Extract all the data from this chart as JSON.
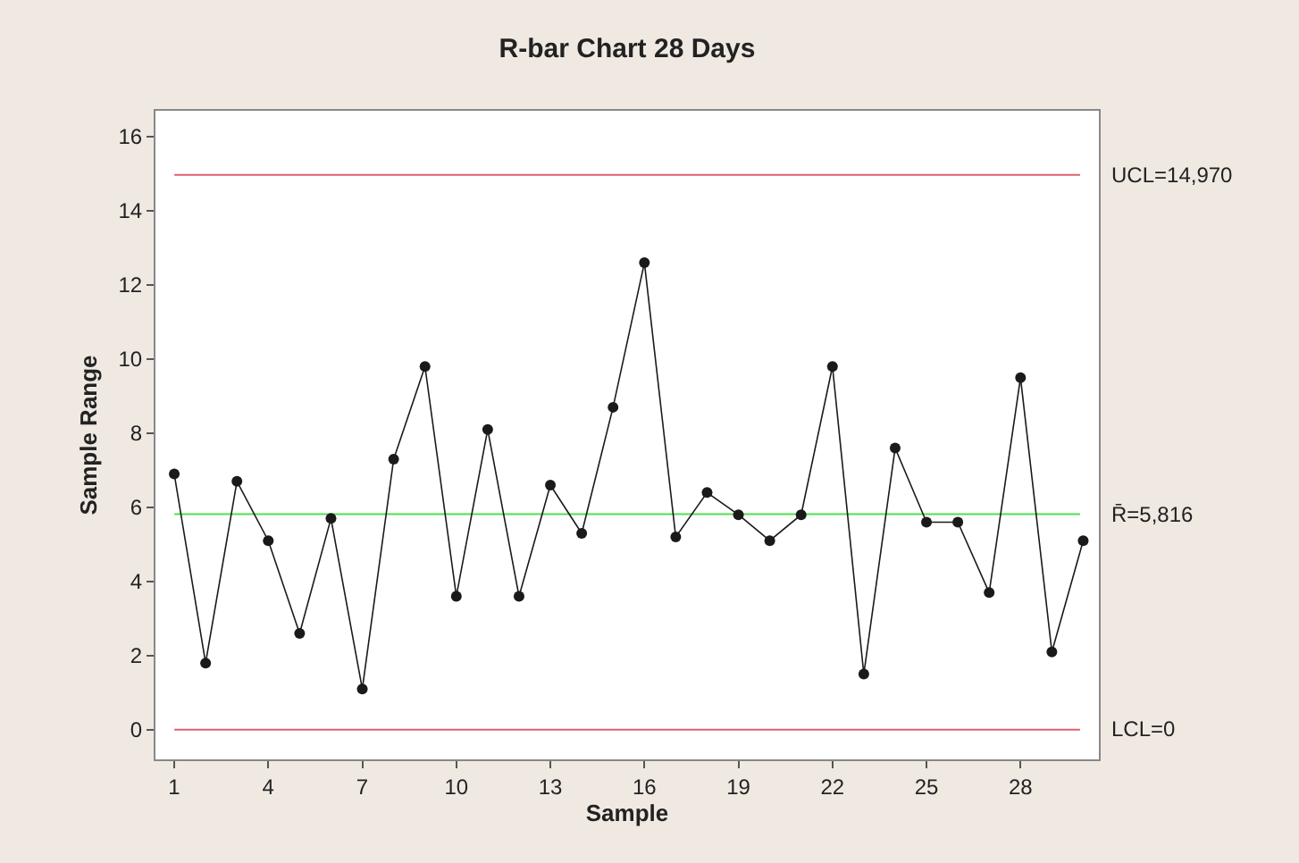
{
  "chart_data": {
    "type": "line",
    "title": "R-bar Chart 28 Days",
    "xlabel": "Sample",
    "ylabel": "Sample Range",
    "x": [
      1,
      2,
      3,
      4,
      5,
      6,
      7,
      8,
      9,
      10,
      11,
      12,
      13,
      14,
      15,
      16,
      17,
      18,
      19,
      20,
      21,
      22,
      23,
      24,
      25,
      26,
      27,
      28,
      29,
      30
    ],
    "series": [
      {
        "color": "#1a1a1a",
        "values": [
          6.9,
          1.8,
          6.7,
          5.1,
          2.6,
          5.7,
          1.1,
          7.3,
          9.8,
          3.6,
          8.1,
          3.6,
          6.6,
          5.3,
          8.7,
          12.6,
          5.2,
          6.4,
          5.8,
          5.1,
          5.8,
          9.8,
          1.5,
          7.6,
          5.6,
          5.6,
          3.7,
          9.5,
          2.1,
          5.1
        ]
      }
    ],
    "xlim": [
      0.4,
      30.5
    ],
    "xticks": [
      1,
      4,
      7,
      10,
      13,
      16,
      19,
      22,
      25,
      28
    ],
    "ylim": [
      -0.8,
      16.7
    ],
    "yticks": [
      0,
      2,
      4,
      6,
      8,
      10,
      12,
      14,
      16
    ],
    "ref_lines": [
      {
        "axis": "y",
        "value": 14.97,
        "label": "UCL=14,970",
        "color": "#e06070"
      },
      {
        "axis": "y",
        "value": 5.816,
        "label": "R̄=5,816",
        "color": "#50e050"
      },
      {
        "axis": "y",
        "value": 0,
        "label": "LCL=0",
        "color": "#e06070"
      }
    ],
    "grid": false,
    "marker": "circle",
    "line_style": "solid"
  }
}
